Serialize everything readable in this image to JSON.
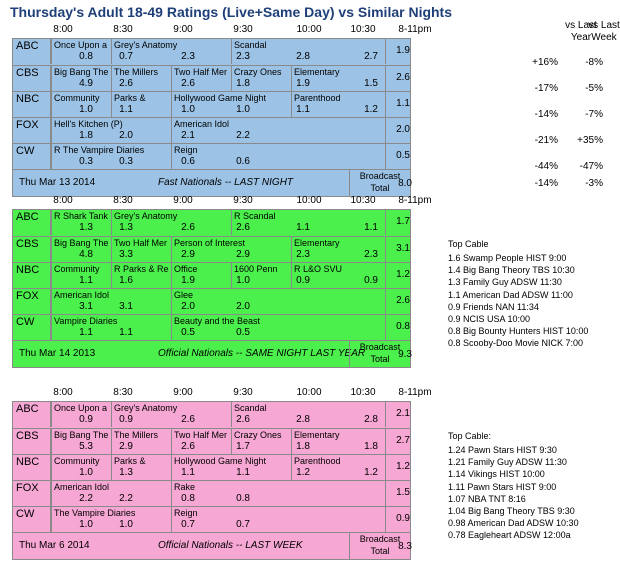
{
  "title": "Thursday's Adult 18-49 Ratings (Live+Same Day) vs Similar Nights",
  "col_headers": [
    "8:00",
    "8:30",
    "9:00",
    "9:30",
    "10:00",
    "10:30",
    "8-11pm"
  ],
  "cmp_headers": {
    "vs_last_year": "vs Last Year",
    "vs_last_week": "vs Last Week"
  },
  "colors": {
    "current": "#9cc3e6",
    "last_year": "#4cf04c",
    "last_week": "#f7a7d3",
    "title": "#1f3f78"
  },
  "panels": [
    {
      "rows": [
        {
          "net": "ABC",
          "shows": [
            "Once Upon a Time in Wonde",
            "Grey's Anatomy",
            "",
            "Scandal"
          ],
          "vals": [
            "0.8",
            "0.7",
            "2.3",
            "2.3",
            "2.8",
            "2.7"
          ],
          "total": "1.9",
          "vs_year": "+16%",
          "vs_week": "-8%"
        },
        {
          "net": "CBS",
          "shows": [
            "Big Bang The",
            "The Millers",
            "Two Half Mer",
            "Crazy Ones",
            "Elementary"
          ],
          "vals": [
            "4.9",
            "2.6",
            "2.6",
            "1.8",
            "1.9",
            "1.5"
          ],
          "total": "2.6",
          "vs_year": "-17%",
          "vs_week": "-5%"
        },
        {
          "net": "NBC",
          "shows": [
            "Community",
            "Parks & Recre",
            "Hollywood Game Night",
            "",
            "Parenthood"
          ],
          "vals": [
            "1.0",
            "1.1",
            "1.0",
            "1.0",
            "1.1",
            "1.2"
          ],
          "total": "1.1",
          "vs_year": "-14%",
          "vs_week": "-7%"
        },
        {
          "net": "FOX",
          "shows": [
            "Hell's Kitchen (P)",
            "",
            "American Idol"
          ],
          "vals": [
            "1.8",
            "2.0",
            "2.1",
            "2.2",
            "",
            ""
          ],
          "total": "2.0",
          "vs_year": "-21%",
          "vs_week": "+35%"
        },
        {
          "net": "CW",
          "shows": [
            "R The Vampire Diaries",
            "",
            "Reign"
          ],
          "vals": [
            "0.3",
            "0.3",
            "0.6",
            "0.6",
            "",
            ""
          ],
          "total": "0.5",
          "vs_year": "-44%",
          "vs_week": "-47%"
        }
      ],
      "footer": {
        "date": "Thu Mar 13 2014",
        "note": "Fast Nationals -- LAST NIGHT",
        "broadcast": "Broadcast",
        "total_label": "Total",
        "total": "8.0",
        "vs_year": "-14%",
        "vs_week": "-3%"
      }
    },
    {
      "rows": [
        {
          "net": "ABC",
          "shows": [
            "R Shark Tank",
            "Grey's Anatomy",
            "",
            "R Scandal"
          ],
          "vals": [
            "1.3",
            "1.3",
            "2.6",
            "2.6",
            "1.1",
            "1.1"
          ],
          "total": "1.7"
        },
        {
          "net": "CBS",
          "shows": [
            "Big Bang The",
            "Two Half Mer",
            "Person of Interest",
            "",
            "Elementary"
          ],
          "vals": [
            "4.8",
            "3.3",
            "2.9",
            "2.9",
            "2.3",
            "2.3"
          ],
          "total": "3.1"
        },
        {
          "net": "NBC",
          "shows": [
            "Community",
            "R Parks & Re",
            "Office",
            "1600 Penn",
            "R L&O SVU"
          ],
          "vals": [
            "1.1",
            "1.6",
            "1.9",
            "1.0",
            "0.9",
            "0.9"
          ],
          "total": "1.2"
        },
        {
          "net": "FOX",
          "shows": [
            "American Idol",
            "",
            "Glee"
          ],
          "vals": [
            "3.1",
            "3.1",
            "2.0",
            "2.0",
            "",
            ""
          ],
          "total": "2.6"
        },
        {
          "net": "CW",
          "shows": [
            "Vampire Diaries",
            "",
            "Beauty and the Beast"
          ],
          "vals": [
            "1.1",
            "1.1",
            "0.5",
            "0.5",
            "",
            ""
          ],
          "total": "0.8"
        }
      ],
      "footer": {
        "date": "Thu Mar 14 2013",
        "note": "Official Nationals -- SAME NIGHT LAST YEAR",
        "broadcast": "Broadcast",
        "total_label": "Total",
        "total": "9.3"
      },
      "side_title": "Top Cable",
      "side": [
        "1.6 Swamp People HIST 9:00",
        "1.4 Big Bang Theory TBS 10:30",
        "1.3 Family Guy ADSW 11:30",
        "1.1 American Dad ADSW 11:00",
        "0.9 Friends NAN 11:34",
        "0.9 NCIS USA 10:00",
        "0.8 Big Bounty Hunters HIST 10:00",
        "0.8 Scooby-Doo Movie NICK 7:00"
      ]
    },
    {
      "rows": [
        {
          "net": "ABC",
          "shows": [
            "Once Upon a Time in Wonde",
            "Grey's Anatomy",
            "",
            "Scandal"
          ],
          "vals": [
            "0.9",
            "0.9",
            "2.6",
            "2.6",
            "2.8",
            "2.8"
          ],
          "total": "2.1"
        },
        {
          "net": "CBS",
          "shows": [
            "Big Bang The",
            "The Millers",
            "Two Half Mer",
            "Crazy Ones",
            "Elementary"
          ],
          "vals": [
            "5.3",
            "2.9",
            "2.6",
            "1.7",
            "1.8",
            "1.8"
          ],
          "total": "2.7"
        },
        {
          "net": "NBC",
          "shows": [
            "Community",
            "Parks & Recre",
            "Hollywood Game Night",
            "",
            "Parenthood"
          ],
          "vals": [
            "1.0",
            "1.3",
            "1.1",
            "1.1",
            "1.2",
            "1.2"
          ],
          "total": "1.2"
        },
        {
          "net": "FOX",
          "shows": [
            "American Idol",
            "",
            "Rake"
          ],
          "vals": [
            "2.2",
            "2.2",
            "0.8",
            "0.8",
            "",
            ""
          ],
          "total": "1.5"
        },
        {
          "net": "CW",
          "shows": [
            "The Vampire Diaries",
            "",
            "Reign"
          ],
          "vals": [
            "1.0",
            "1.0",
            "0.7",
            "0.7",
            "",
            ""
          ],
          "total": "0.9"
        }
      ],
      "footer": {
        "date": "Thu Mar 6 2014",
        "note": "Official Nationals -- LAST WEEK",
        "broadcast": "Broadcast",
        "total_label": "Total",
        "total": "8.3"
      },
      "side_title": "Top Cable:",
      "side": [
        "1.24 Pawn Stars HIST 9:30",
        "1.21 Family Guy ADSW 11:30",
        "1.14 Vikings HIST 10:00",
        "1.11 Pawn Stars HIST 9:00",
        "1.07 NBA TNT 8:16",
        "1.04 Big Bang Theory TBS 9:30",
        "0.98 American Dad ADSW 10:30",
        "0.78 Eagleheart ADSW 12:00a"
      ]
    }
  ]
}
